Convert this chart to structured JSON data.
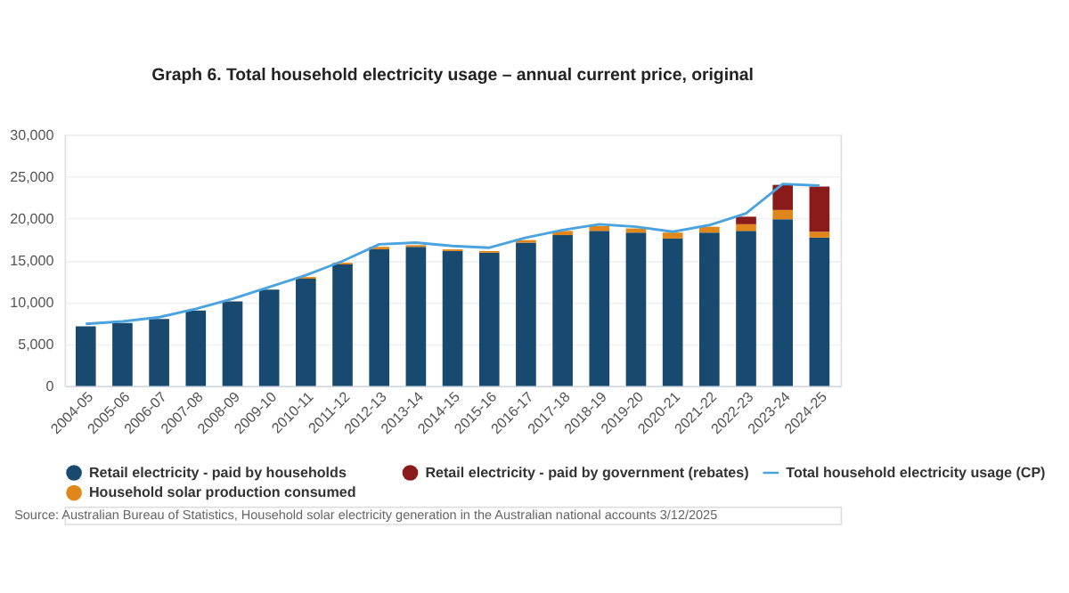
{
  "chart_data": {
    "type": "bar",
    "title": "Graph 6. Total household electricity usage – annual current price, original",
    "categories": [
      "2004-05",
      "2005-06",
      "2006-07",
      "2007-08",
      "2008-09",
      "2009-10",
      "2010-11",
      "2011-12",
      "2012-13",
      "2013-14",
      "2014-15",
      "2015-16",
      "2016-17",
      "2017-18",
      "2018-19",
      "2019-20",
      "2020-21",
      "2021-22",
      "2022-23",
      "2023-24",
      "2024-25"
    ],
    "stacked": true,
    "series": [
      {
        "name": "Total household electricity usage (CP)",
        "type": "line",
        "color": "#4aa3df",
        "values": [
          7400,
          7700,
          8200,
          9200,
          10400,
          11800,
          13200,
          14900,
          16900,
          17100,
          16700,
          16500,
          17700,
          18600,
          19300,
          19000,
          18400,
          19200,
          20600,
          24100,
          23900
        ]
      },
      {
        "name": "Retail electricity - paid by households",
        "type": "bar",
        "color": "#174a6e",
        "values": [
          7100,
          7500,
          8000,
          9000,
          10100,
          11500,
          12800,
          14500,
          16300,
          16600,
          16100,
          15900,
          17100,
          18000,
          18500,
          18300,
          17600,
          18300,
          18500,
          19900,
          17700
        ]
      },
      {
        "name": "Household solar production consumed",
        "type": "bar",
        "color": "#e0861a",
        "values": [
          null,
          null,
          null,
          null,
          null,
          null,
          200,
          200,
          300,
          200,
          200,
          200,
          300,
          500,
          600,
          500,
          700,
          700,
          800,
          1100,
          700
        ]
      },
      {
        "name": "Retail electricity - paid by government (rebates)",
        "type": "bar",
        "color": "#8b1a1a",
        "values": [
          null,
          null,
          null,
          null,
          null,
          null,
          null,
          null,
          null,
          null,
          null,
          null,
          null,
          null,
          null,
          null,
          null,
          null,
          900,
          3000,
          5400
        ]
      }
    ],
    "ylim": [
      0,
      30000
    ],
    "yticks": [
      {
        "value": 0,
        "label": "0"
      },
      {
        "value": 5000,
        "label": "5,000"
      },
      {
        "value": 10000,
        "label": "10,000"
      },
      {
        "value": 15000,
        "label": "15,000"
      },
      {
        "value": 20000,
        "label": "20,000"
      },
      {
        "value": 25000,
        "label": "25,000"
      },
      {
        "value": 30000,
        "label": "30,000"
      }
    ],
    "grid": "y",
    "legend": "bottom",
    "annotations": [
      "Source: Australian Bureau of Statistics, Household solar electricity generation in the Australian national accounts 3/12/2025"
    ]
  }
}
